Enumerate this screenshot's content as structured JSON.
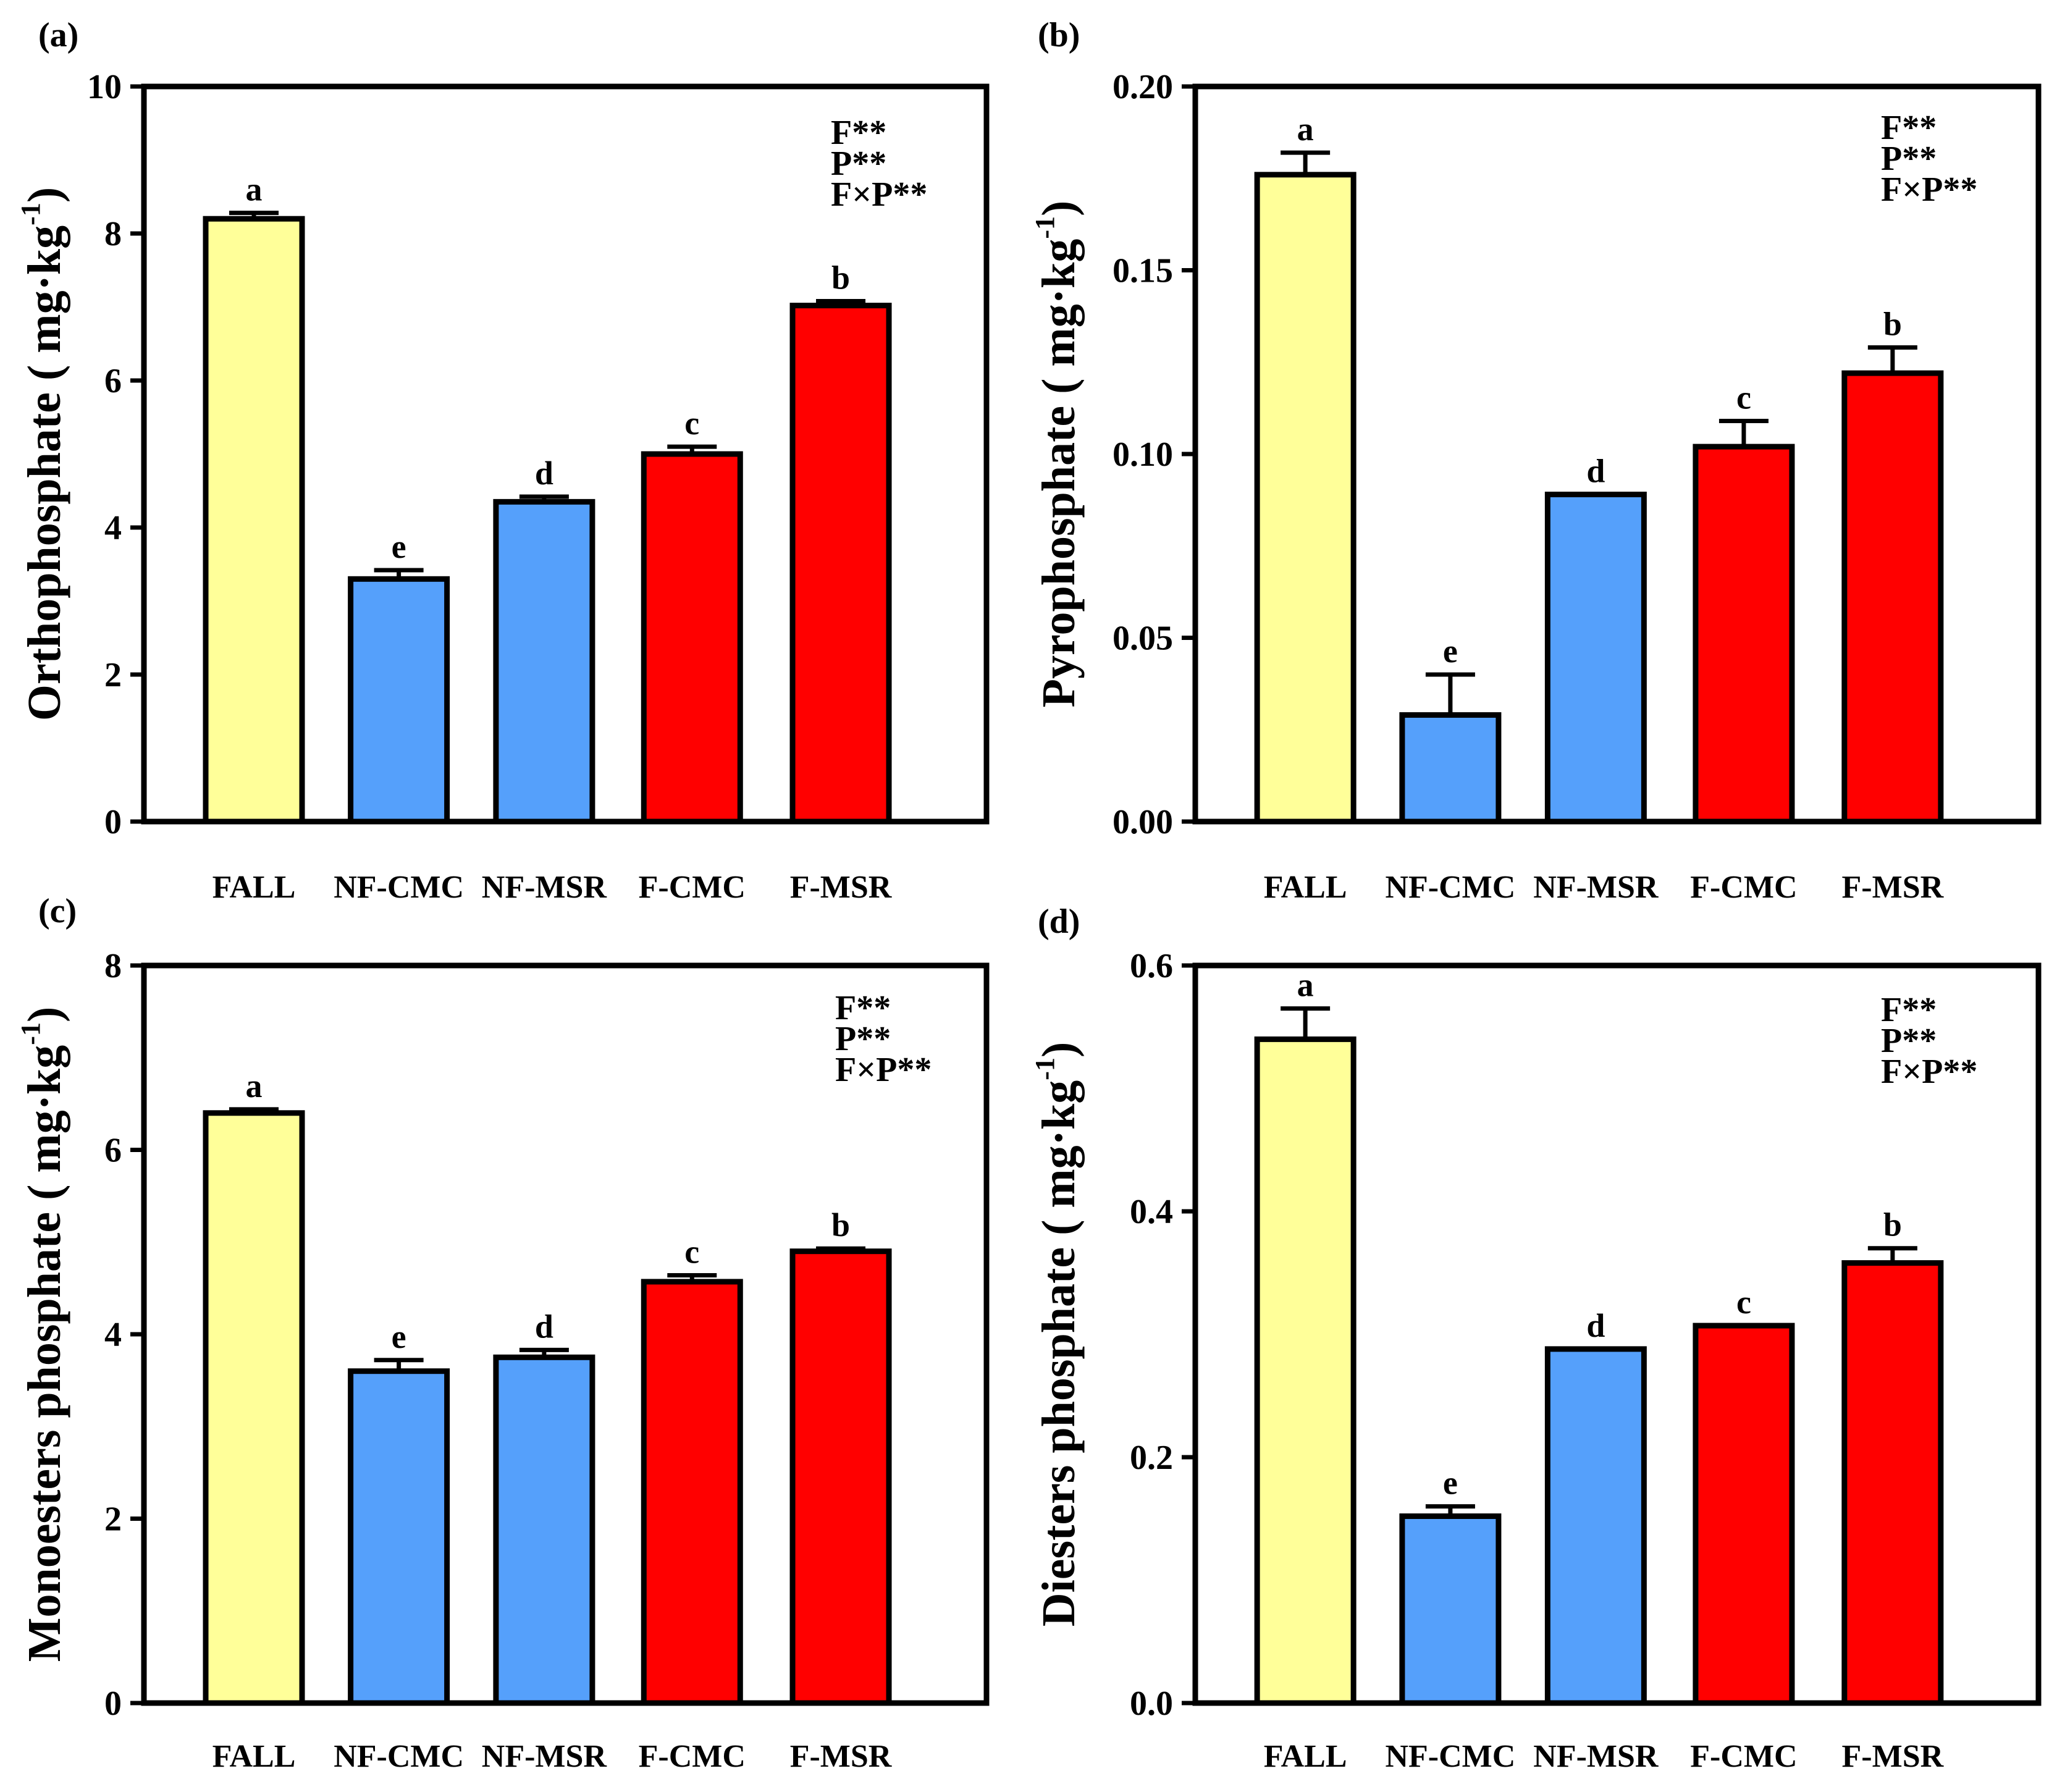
{
  "chart_data": [
    {
      "type": "bar",
      "panel_label": "(a)",
      "ylabel": {
        "main": "Orthophosphate ( mg·kg",
        "sup": "-1",
        "end": ")"
      },
      "categories": [
        "FALL",
        "NF-CMC",
        "NF-MSR",
        "F-CMC",
        "F-MSR"
      ],
      "values": [
        8.2,
        3.3,
        4.35,
        5.0,
        7.02
      ],
      "errors": [
        0.08,
        0.12,
        0.07,
        0.1,
        0.06
      ],
      "sig_letters": [
        "a",
        "e",
        "d",
        "c",
        "b"
      ],
      "colors": [
        "#ffff99",
        "#55a0fb",
        "#55a0fb",
        "#ff0000",
        "#ff0000"
      ],
      "ylim": [
        0,
        10
      ],
      "yticks": [
        0,
        2,
        4,
        6,
        8,
        10
      ],
      "ytick_labels": [
        "0",
        "2",
        "4",
        "6",
        "8",
        "10"
      ],
      "annotations": [
        "F**",
        "P**",
        "F×P**"
      ]
    },
    {
      "type": "bar",
      "panel_label": "(b)",
      "ylabel": {
        "main": "Pyrophosphate ( mg·kg",
        "sup": "-1",
        "end": ")"
      },
      "categories": [
        "FALL",
        "NF-CMC",
        "NF-MSR",
        "F-CMC",
        "F-MSR"
      ],
      "values": [
        0.176,
        0.029,
        0.089,
        0.102,
        0.122
      ],
      "errors": [
        0.006,
        0.011,
        0.0,
        0.007,
        0.007
      ],
      "sig_letters": [
        "a",
        "e",
        "d",
        "c",
        "b"
      ],
      "colors": [
        "#ffff99",
        "#55a0fb",
        "#55a0fb",
        "#ff0000",
        "#ff0000"
      ],
      "ylim": [
        0,
        0.2
      ],
      "yticks": [
        0,
        0.05,
        0.1,
        0.15,
        0.2
      ],
      "ytick_labels": [
        "0.00",
        "0.05",
        "0.10",
        "0.15",
        "0.20"
      ],
      "annotations": [
        "F**",
        "P**",
        "F×P**"
      ]
    },
    {
      "type": "bar",
      "panel_label": "(c)",
      "ylabel": {
        "main": "Monoesters phosphate ( mg·kg",
        "sup": "-1",
        "end": ")"
      },
      "categories": [
        "FALL",
        "NF-CMC",
        "NF-MSR",
        "F-CMC",
        "F-MSR"
      ],
      "values": [
        6.4,
        3.6,
        3.75,
        4.57,
        4.9
      ],
      "errors": [
        0.04,
        0.12,
        0.08,
        0.07,
        0.03
      ],
      "sig_letters": [
        "a",
        "e",
        "d",
        "c",
        "b"
      ],
      "colors": [
        "#ffff99",
        "#55a0fb",
        "#55a0fb",
        "#ff0000",
        "#ff0000"
      ],
      "ylim": [
        0,
        8
      ],
      "yticks": [
        0,
        2,
        4,
        6,
        8
      ],
      "ytick_labels": [
        "0",
        "2",
        "4",
        "6",
        "8"
      ],
      "annotations": [
        "F**",
        "P**",
        "F×P**"
      ]
    },
    {
      "type": "bar",
      "panel_label": "(d)",
      "ylabel": {
        "main": "Diesters phosphate ( mg·kg",
        "sup": "-1",
        "end": ")"
      },
      "categories": [
        "FALL",
        "NF-CMC",
        "NF-MSR",
        "F-CMC",
        "F-MSR"
      ],
      "values": [
        0.54,
        0.152,
        0.288,
        0.307,
        0.358
      ],
      "errors": [
        0.025,
        0.008,
        0.0,
        0.0,
        0.012
      ],
      "sig_letters": [
        "a",
        "e",
        "d",
        "c",
        "b"
      ],
      "colors": [
        "#ffff99",
        "#55a0fb",
        "#55a0fb",
        "#ff0000",
        "#ff0000"
      ],
      "ylim": [
        0,
        0.6
      ],
      "yticks": [
        0,
        0.2,
        0.4,
        0.6
      ],
      "ytick_labels": [
        "0.0",
        "0.2",
        "0.4",
        "0.6"
      ],
      "annotations": [
        "F**",
        "P**",
        "F×P**"
      ]
    }
  ]
}
